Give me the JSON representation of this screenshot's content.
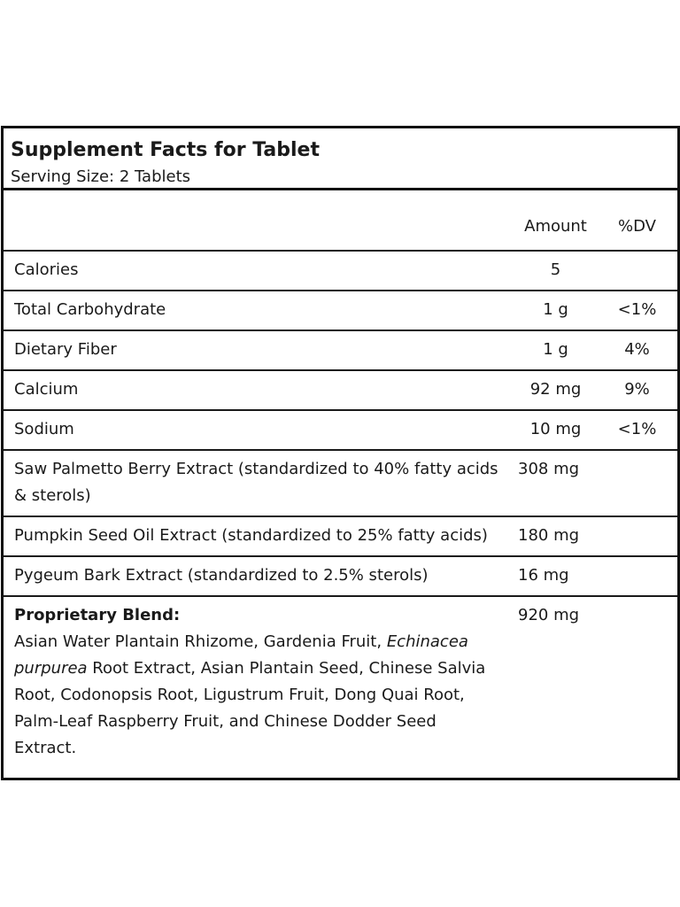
{
  "title": "Supplement Facts for Tablet",
  "serving_size": "Serving Size: 2 Tablets",
  "columns": {
    "amount": "Amount",
    "dv": "%DV"
  },
  "rows": [
    {
      "name": "Calories",
      "amount": "5",
      "dv": ""
    },
    {
      "name": "Total Carbohydrate",
      "amount": "1 g",
      "dv": "<1%"
    },
    {
      "name": "Dietary Fiber",
      "amount": "1 g",
      "dv": "4%"
    },
    {
      "name": "Calcium",
      "amount": "92 mg",
      "dv": "9%"
    },
    {
      "name": "Sodium",
      "amount": "10 mg",
      "dv": "<1%"
    },
    {
      "name": "Saw Palmetto Berry Extract (standardized to 40% fatty acids & sterols)",
      "amount": "308 mg",
      "dv": ""
    },
    {
      "name": "Pumpkin Seed Oil Extract (standardized to 25% fatty acids)",
      "amount": "180 mg",
      "dv": ""
    },
    {
      "name": "Pygeum Bark Extract (standardized to 2.5% sterols)",
      "amount": "16 mg",
      "dv": ""
    }
  ],
  "blend": {
    "title": "Proprietary Blend:",
    "amount": "920 mg",
    "ingredients_before_italic": "Asian Water Plantain Rhizome, Gardenia Fruit, ",
    "ingredients_italic": "Echinacea purpurea",
    "ingredients_after_italic": " Root Extract, Asian Plantain Seed, Chinese Salvia Root, Codonopsis Root, Ligustrum Fruit, Dong Quai Root, Palm-Leaf Raspberry Fruit, and Chinese Dodder Seed Extract."
  }
}
